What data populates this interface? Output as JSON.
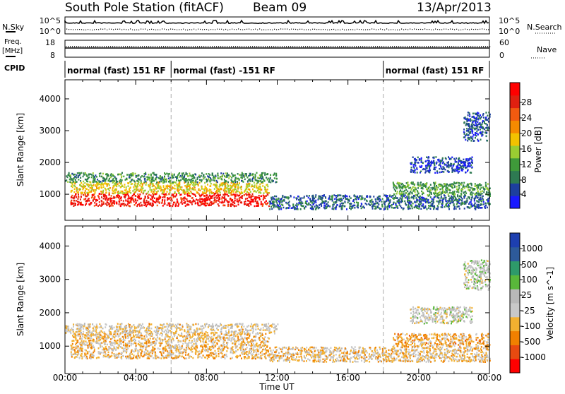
{
  "header": {
    "station": "South Pole Station (fitACF)",
    "beam": "Beam 09",
    "date": "13/Apr/2013"
  },
  "top_panels": {
    "nsky_label": "N.Sky",
    "nsky_ticks": [
      "10^5",
      "10^0"
    ],
    "nsearch_label": "N.Search",
    "nsearch_ticks": [
      "10^5",
      "10^0"
    ],
    "freq_label_line1": "Freq.",
    "freq_label_line2": "[MHz]",
    "freq_ticks": [
      "18",
      "8"
    ],
    "nave_label": "Nave",
    "nave_ticks": [
      "60",
      "0"
    ],
    "cpid_label": "CPID",
    "cpid_segments": [
      {
        "label": "normal (fast) 151 RF",
        "start_hour": 0,
        "end_hour": 6
      },
      {
        "label": "normal (fast) -151 RF",
        "start_hour": 6,
        "end_hour": 18
      },
      {
        "label": "normal (fast) 151 RF",
        "start_hour": 18,
        "end_hour": 24
      }
    ]
  },
  "colors": {
    "power_scale": [
      "#1a1aff",
      "#1d3f9f",
      "#2e7a52",
      "#3f9a3a",
      "#9acd32",
      "#f2c200",
      "#f58a00",
      "#f25a10",
      "#e02010",
      "#ff0000"
    ],
    "velocity_scale": [
      "#ff0000",
      "#e84a10",
      "#f08000",
      "#f2b030",
      "#c8c8c8",
      "#b8b8b8",
      "#59b83a",
      "#2e9a6a",
      "#2d5a9a",
      "#1d3fb0"
    ]
  },
  "chart_data": [
    {
      "type": "heatmap",
      "title": "Power",
      "xlabel": "",
      "ylabel": "Slant Range [km]",
      "xlim": [
        0,
        24
      ],
      "ylim": [
        180,
        4600
      ],
      "x_ticks": [
        "00:00",
        "04:00",
        "08:00",
        "12:00",
        "16:00",
        "20:00",
        "00:00"
      ],
      "y_ticks": [
        1000,
        2000,
        3000,
        4000
      ],
      "colorbar": {
        "label": "Power [dB]",
        "ticks": [
          4,
          8,
          12,
          16,
          20,
          24,
          28
        ],
        "range": [
          0,
          30
        ]
      },
      "bands": [
        {
          "x": [
            0.3,
            11.5
          ],
          "y": [
            650,
            1050
          ],
          "value": 27
        },
        {
          "x": [
            0.3,
            11.5
          ],
          "y": [
            1050,
            1400
          ],
          "value": 16
        },
        {
          "x": [
            0,
            12
          ],
          "y": [
            1400,
            1700
          ],
          "value": 9
        },
        {
          "x": [
            11.5,
            24
          ],
          "y": [
            550,
            1000
          ],
          "value": 6
        },
        {
          "x": [
            18.5,
            24
          ],
          "y": [
            1000,
            1400
          ],
          "value": 10
        },
        {
          "x": [
            19.5,
            23
          ],
          "y": [
            1700,
            2200
          ],
          "value": 4
        },
        {
          "x": [
            22.5,
            24
          ],
          "y": [
            2700,
            3600
          ],
          "value": 5
        }
      ]
    },
    {
      "type": "heatmap",
      "title": "Velocity",
      "xlabel": "Time UT",
      "ylabel": "Slant Range [km]",
      "xlim": [
        0,
        24
      ],
      "ylim": [
        180,
        4600
      ],
      "x_ticks": [
        "00:00",
        "04:00",
        "08:00",
        "12:00",
        "16:00",
        "20:00",
        "00:00"
      ],
      "y_ticks": [
        1000,
        2000,
        3000,
        4000
      ],
      "colorbar": {
        "label": "Velocity [m s^-1]",
        "ticks": [
          1000,
          500,
          100,
          25,
          -25,
          -100,
          -500,
          -1000
        ],
        "range": [
          -1200,
          1200
        ]
      },
      "bands": [
        {
          "x": [
            0.3,
            11.5
          ],
          "y": [
            650,
            1400
          ],
          "value": -300
        },
        {
          "x": [
            0,
            12
          ],
          "y": [
            1400,
            1700
          ],
          "value": -150
        },
        {
          "x": [
            11.5,
            24
          ],
          "y": [
            550,
            1000
          ],
          "value": -250
        },
        {
          "x": [
            18.5,
            24
          ],
          "y": [
            1000,
            1400
          ],
          "value": -400
        },
        {
          "x": [
            19.5,
            23
          ],
          "y": [
            1700,
            2200
          ],
          "value": 0
        },
        {
          "x": [
            22.5,
            24
          ],
          "y": [
            2700,
            3600
          ],
          "value": 50
        }
      ]
    }
  ]
}
